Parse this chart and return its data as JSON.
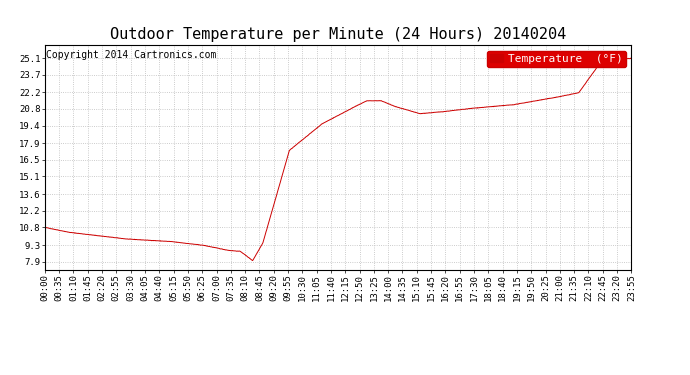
{
  "title": "Outdoor Temperature per Minute (24 Hours) 20140204",
  "copyright_text": "Copyright 2014 Cartronics.com",
  "legend_label": "Temperature  (°F)",
  "line_color": "#cc0000",
  "background_color": "#ffffff",
  "plot_bg_color": "#ffffff",
  "grid_color": "#bbbbbb",
  "yticks": [
    7.9,
    9.3,
    10.8,
    12.2,
    13.6,
    15.1,
    16.5,
    17.9,
    19.4,
    20.8,
    22.2,
    23.7,
    25.1
  ],
  "ylim": [
    7.2,
    26.2
  ],
  "xtick_labels": [
    "00:00",
    "00:35",
    "01:10",
    "01:45",
    "02:20",
    "02:55",
    "03:30",
    "04:05",
    "04:40",
    "05:15",
    "05:50",
    "06:25",
    "07:00",
    "07:35",
    "08:10",
    "08:45",
    "09:20",
    "09:55",
    "10:30",
    "11:05",
    "11:40",
    "12:15",
    "12:50",
    "13:25",
    "14:00",
    "14:35",
    "15:10",
    "15:45",
    "16:20",
    "16:55",
    "17:30",
    "18:05",
    "18:40",
    "19:15",
    "19:50",
    "20:25",
    "21:00",
    "21:35",
    "22:10",
    "22:45",
    "23:20",
    "23:55"
  ],
  "num_points": 1440,
  "title_fontsize": 11,
  "copyright_fontsize": 7,
  "tick_fontsize": 6.5,
  "legend_fontsize": 8
}
